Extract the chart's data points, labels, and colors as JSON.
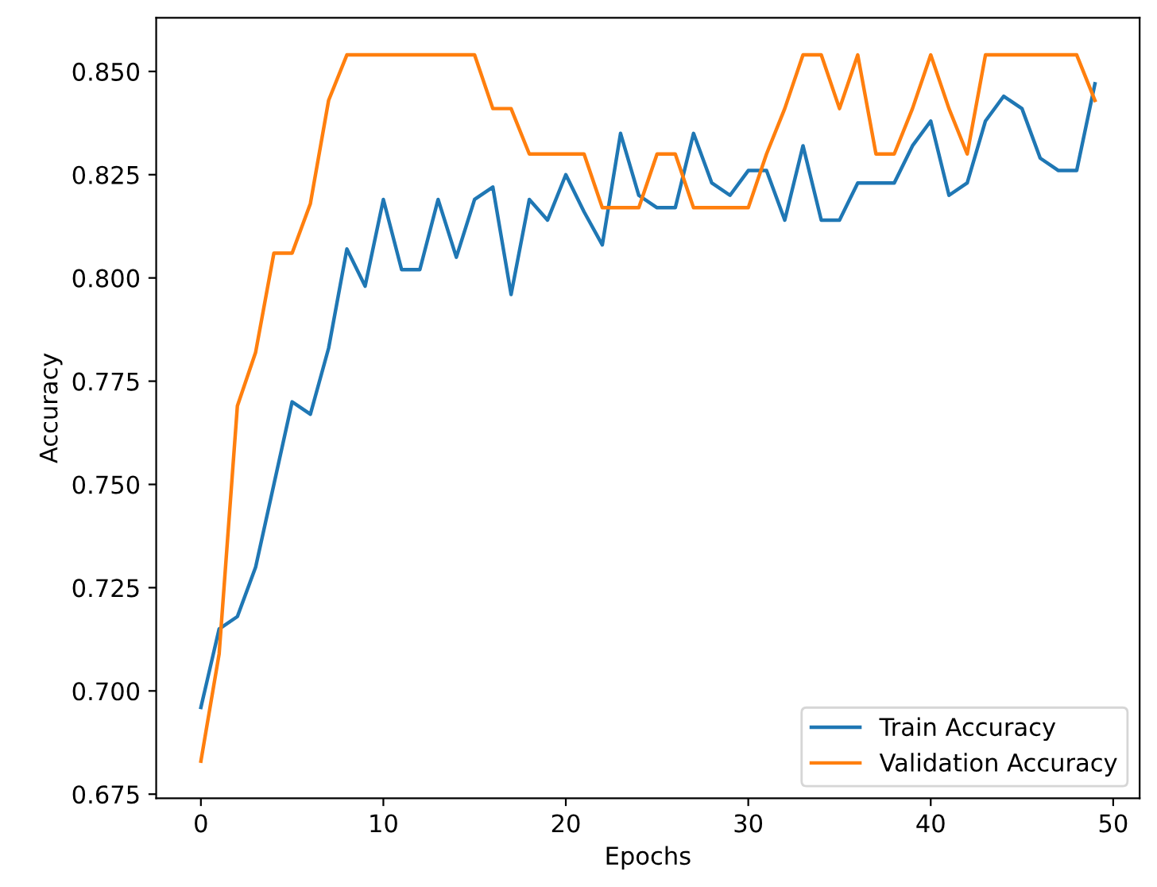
{
  "chart_data": {
    "type": "line",
    "xlabel": "Epochs",
    "ylabel": "Accuracy",
    "x": [
      0,
      1,
      2,
      3,
      4,
      5,
      6,
      7,
      8,
      9,
      10,
      11,
      12,
      13,
      14,
      15,
      16,
      17,
      18,
      19,
      20,
      21,
      22,
      23,
      24,
      25,
      26,
      27,
      28,
      29,
      30,
      31,
      32,
      33,
      34,
      35,
      36,
      37,
      38,
      39,
      40,
      41,
      42,
      43,
      44,
      45,
      46,
      47,
      48,
      49
    ],
    "series": [
      {
        "name": "Train Accuracy",
        "color": "#1f77b4",
        "values": [
          0.696,
          0.715,
          0.718,
          0.73,
          0.75,
          0.77,
          0.767,
          0.783,
          0.807,
          0.798,
          0.819,
          0.802,
          0.802,
          0.819,
          0.805,
          0.819,
          0.822,
          0.796,
          0.819,
          0.814,
          0.825,
          0.816,
          0.808,
          0.835,
          0.82,
          0.817,
          0.817,
          0.835,
          0.823,
          0.82,
          0.826,
          0.826,
          0.814,
          0.832,
          0.814,
          0.814,
          0.823,
          0.823,
          0.823,
          0.832,
          0.838,
          0.82,
          0.823,
          0.838,
          0.844,
          0.841,
          0.829,
          0.826,
          0.826,
          0.847
        ]
      },
      {
        "name": "Validation Accuracy",
        "color": "#ff7f0e",
        "values": [
          0.683,
          0.709,
          0.769,
          0.782,
          0.806,
          0.806,
          0.818,
          0.843,
          0.854,
          0.854,
          0.854,
          0.854,
          0.854,
          0.854,
          0.854,
          0.854,
          0.841,
          0.841,
          0.83,
          0.83,
          0.83,
          0.83,
          0.817,
          0.817,
          0.817,
          0.83,
          0.83,
          0.817,
          0.817,
          0.817,
          0.817,
          0.83,
          0.841,
          0.854,
          0.854,
          0.841,
          0.854,
          0.83,
          0.83,
          0.841,
          0.854,
          0.841,
          0.83,
          0.854,
          0.854,
          0.854,
          0.854,
          0.854,
          0.854,
          0.843
        ]
      }
    ],
    "xlim": [
      -2.45,
      51.45
    ],
    "xticks": [
      0,
      10,
      20,
      30,
      40,
      50
    ],
    "ylim": [
      0.674,
      0.863
    ],
    "yticks": [
      0.675,
      {
        "value": 0.7,
        "label": "0.700"
      },
      0.725,
      {
        "value": 0.75,
        "label": "0.750"
      },
      0.775,
      {
        "value": 0.8,
        "label": "0.800"
      },
      0.825,
      {
        "value": 0.85,
        "label": "0.850"
      }
    ],
    "legend": "bottom right",
    "grid": false
  }
}
